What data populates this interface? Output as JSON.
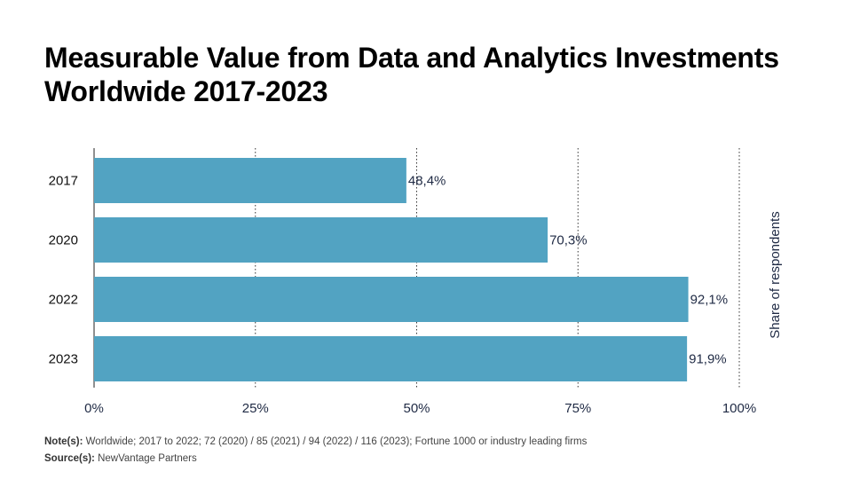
{
  "title": "Measurable Value from Data and Analytics Investments Worldwide 2017-2023",
  "chart_data": {
    "type": "bar",
    "orientation": "horizontal",
    "categories": [
      "2017",
      "2020",
      "2022",
      "2023"
    ],
    "values": [
      48.4,
      70.3,
      92.1,
      91.9
    ],
    "value_labels": [
      "48,4%",
      "70,3%",
      "92,1%",
      "91,9%"
    ],
    "xlim": [
      0,
      100
    ],
    "xticks": [
      0,
      25,
      50,
      75,
      100
    ],
    "xtick_labels": [
      "0%",
      "25%",
      "50%",
      "75%",
      "100%"
    ],
    "ylabel": "Share of respondents",
    "bar_color": "#52a3c2",
    "grid": "vertical dotted"
  },
  "footer": {
    "note_label": "Note(s):",
    "note_text": "Worldwide; 2017 to 2022; 72 (2020) / 85 (2021) / 94 (2022) / 116 (2023); Fortune 1000 or industry leading firms",
    "source_label": "Source(s):",
    "source_text": "NewVantage Partners"
  }
}
